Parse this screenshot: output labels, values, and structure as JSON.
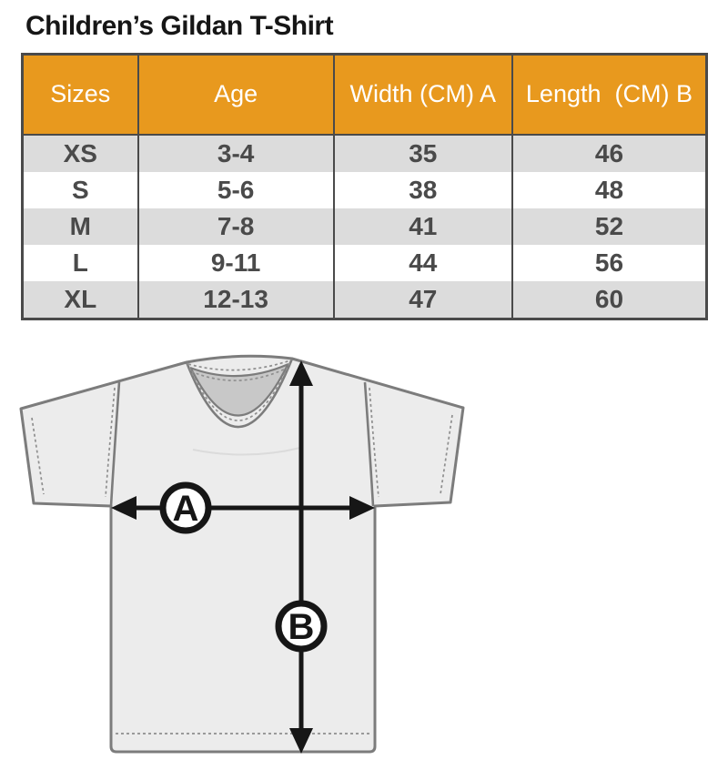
{
  "title": "Children’s Gildan T-Shirt",
  "table": {
    "headers": [
      "Sizes",
      "Age",
      "Width (CM) A",
      "Length  (CM) B"
    ],
    "rows": [
      [
        "XS",
        "3-4",
        "35",
        "46"
      ],
      [
        "S",
        "5-6",
        "38",
        "48"
      ],
      [
        "M",
        "7-8",
        "41",
        "52"
      ],
      [
        "L",
        "9-11",
        "44",
        "56"
      ],
      [
        "XL",
        "12-13",
        "47",
        "60"
      ]
    ]
  },
  "diagram": {
    "width_marker": "A",
    "length_marker": "B"
  },
  "colors": {
    "header_bg": "#E8991E",
    "header_text": "#FFFFFF",
    "row_alt_bg": "#DCDCDC",
    "cell_text": "#4A4A4A",
    "table_border": "#4A4A4A",
    "shirt_fill": "#ECECEC",
    "shirt_outline": "#7C7C7C",
    "collar_inner": "#C8C8C8",
    "marker_color": "#161616"
  }
}
